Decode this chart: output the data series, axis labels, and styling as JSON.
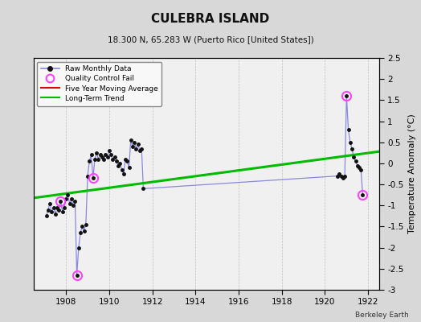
{
  "title": "CULEBRA ISLAND",
  "subtitle": "18.300 N, 65.283 W (Puerto Rico [United States])",
  "ylabel": "Temperature Anomaly (°C)",
  "credit": "Berkeley Earth",
  "xlim": [
    1906.5,
    1922.5
  ],
  "ylim": [
    -3.0,
    2.5
  ],
  "xticks": [
    1908,
    1910,
    1912,
    1914,
    1916,
    1918,
    1920,
    1922
  ],
  "yticks": [
    -3,
    -2.5,
    -2,
    -1.5,
    -1,
    -0.5,
    0,
    0.5,
    1,
    1.5,
    2,
    2.5
  ],
  "background_color": "#d8d8d8",
  "plot_bg_color": "#f0f0f0",
  "raw_data_x": [
    1907.083,
    1907.167,
    1907.25,
    1907.333,
    1907.417,
    1907.5,
    1907.583,
    1907.667,
    1907.75,
    1907.833,
    1907.917,
    1908.0,
    1908.083,
    1908.167,
    1908.25,
    1908.333,
    1908.417,
    1908.5,
    1908.583,
    1908.667,
    1908.75,
    1908.833,
    1908.917,
    1909.0,
    1909.083,
    1909.167,
    1909.25,
    1909.333,
    1909.417,
    1909.5,
    1909.583,
    1909.667,
    1909.75,
    1909.833,
    1909.917,
    1910.0,
    1910.083,
    1910.167,
    1910.25,
    1910.333,
    1910.417,
    1910.5,
    1910.583,
    1910.667,
    1910.75,
    1910.833,
    1910.917,
    1911.0,
    1911.083,
    1911.167,
    1911.25,
    1911.333,
    1911.417,
    1911.5,
    1911.583,
    1920.583,
    1920.667,
    1920.75,
    1920.833,
    1920.917,
    1921.0,
    1921.083,
    1921.167,
    1921.25,
    1921.333,
    1921.417,
    1921.5,
    1921.583,
    1921.667,
    1921.75
  ],
  "raw_data_y": [
    -1.25,
    -1.1,
    -0.95,
    -1.15,
    -1.05,
    -1.2,
    -1.05,
    -1.1,
    -0.9,
    -1.15,
    -1.05,
    -0.85,
    -0.75,
    -0.95,
    -0.85,
    -1.0,
    -0.9,
    -2.65,
    -2.0,
    -1.65,
    -1.5,
    -1.6,
    -1.45,
    -0.3,
    0.05,
    0.2,
    -0.35,
    0.1,
    0.25,
    0.1,
    0.2,
    0.15,
    0.1,
    0.2,
    0.15,
    0.3,
    0.2,
    0.1,
    0.15,
    0.05,
    -0.05,
    0.0,
    -0.15,
    -0.25,
    0.1,
    0.05,
    -0.1,
    0.55,
    0.4,
    0.5,
    0.35,
    0.45,
    0.3,
    0.35,
    -0.6,
    -0.3,
    -0.25,
    -0.3,
    -0.35,
    -0.3,
    1.6,
    0.8,
    0.5,
    0.35,
    0.15,
    0.05,
    -0.05,
    -0.1,
    -0.15,
    -0.75
  ],
  "qc_fail_x": [
    1907.75,
    1908.5,
    1909.25,
    1921.0,
    1921.75
  ],
  "qc_fail_y": [
    -0.9,
    -2.65,
    -0.35,
    1.6,
    -0.75
  ],
  "trend_x": [
    1906.5,
    1922.5
  ],
  "trend_y": [
    -0.82,
    0.28
  ],
  "raw_color": "#8888dd",
  "raw_marker_color": "#111111",
  "qc_color": "#ff44ff",
  "trend_color": "#00bb00",
  "moving_avg_color": "#dd0000"
}
